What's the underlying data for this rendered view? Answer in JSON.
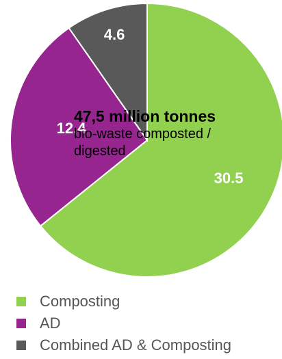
{
  "chart_data": {
    "type": "pie",
    "categories": [
      "Composting",
      "AD",
      "Combined AD & Composting"
    ],
    "values": [
      30.5,
      12.4,
      4.6
    ],
    "data_labels": [
      "30.5",
      "12.4",
      "4.6"
    ],
    "colors": [
      "#92d050",
      "#962590",
      "#595959"
    ],
    "start": "top, clockwise",
    "legend": "bottom",
    "annotation": {
      "title": "47,5 million tonnes",
      "subtitle": "bio-waste composted / digested"
    }
  }
}
